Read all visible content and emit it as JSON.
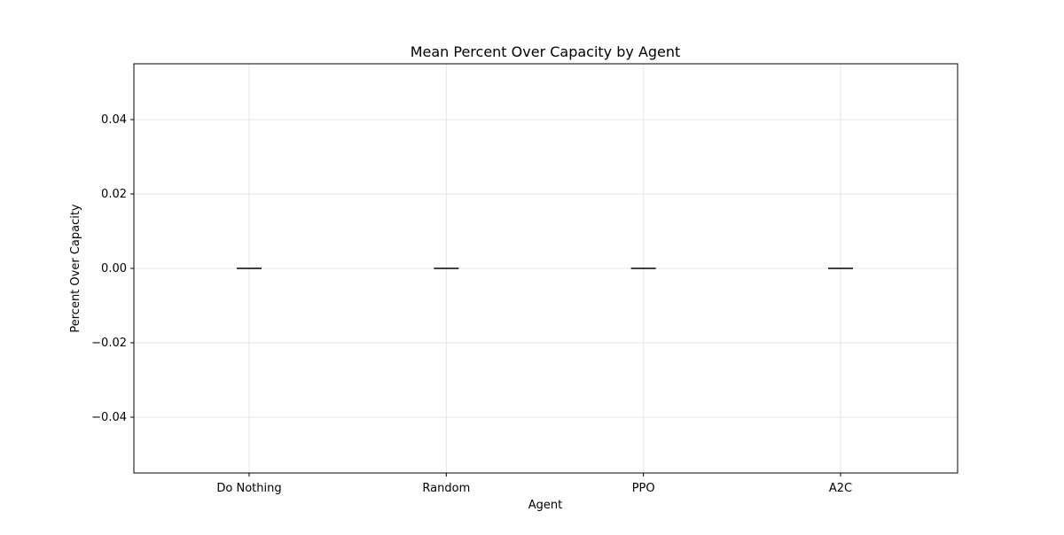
{
  "chart_data": {
    "type": "box",
    "title": "Mean Percent Over Capacity by Agent",
    "xlabel": "Agent",
    "ylabel": "Percent Over Capacity",
    "categories": [
      "Do Nothing",
      "Random",
      "PPO",
      "A2C"
    ],
    "values": [
      0.0,
      0.0,
      0.0,
      0.0
    ],
    "ylim": [
      -0.055,
      0.055
    ],
    "yticks": [
      -0.04,
      -0.02,
      0.0,
      0.02,
      0.04
    ],
    "ytick_labels": [
      "−0.04",
      "−0.02",
      "0.00",
      "0.02",
      "0.04"
    ],
    "grid": true,
    "legend": "none",
    "colors": {
      "median_line": "#000000",
      "grid": "#e6e6e6",
      "axes": "#000000"
    }
  }
}
